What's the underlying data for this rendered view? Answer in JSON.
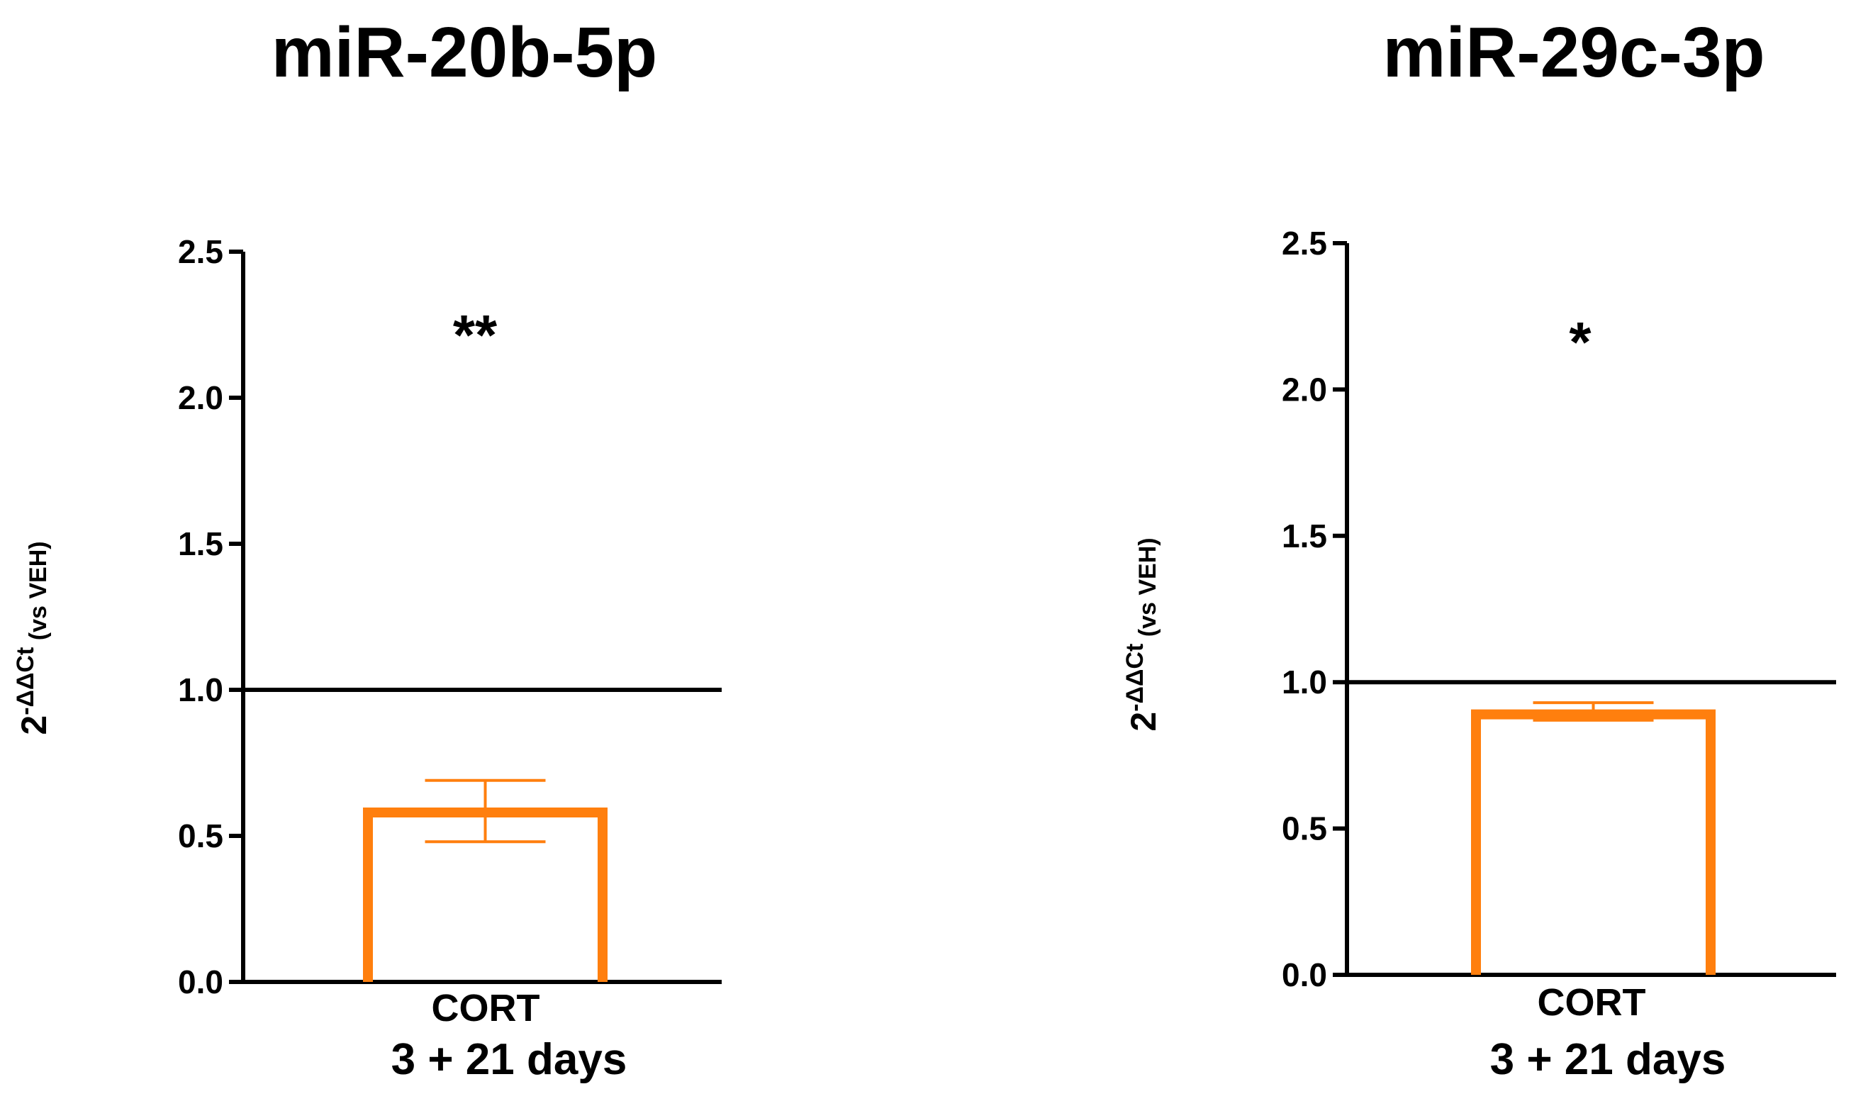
{
  "chart_data": [
    {
      "type": "bar",
      "title": "miR-20b-5p",
      "categories": [
        "CORT"
      ],
      "values": [
        0.58
      ],
      "error_upper": [
        0.69
      ],
      "error_lower": [
        0.48
      ],
      "reference_line": 1.0,
      "significance": "**",
      "ylabel_main": "2",
      "ylabel_sup": "-ΔΔCt",
      "ylabel_suffix": " (vs VEH)",
      "xlabel": "3 + 21 days",
      "ylim": [
        0,
        2.5
      ],
      "yticks": [
        "0.0",
        "0.5",
        "1.0",
        "1.5",
        "2.0",
        "2.5"
      ],
      "bar_color": "#ff7f0e"
    },
    {
      "type": "bar",
      "title": "miR-29c-3p",
      "categories": [
        "CORT"
      ],
      "values": [
        0.89
      ],
      "error_upper": [
        0.93
      ],
      "error_lower": [
        0.87
      ],
      "reference_line": 1.0,
      "significance": "*",
      "ylabel_main": "2",
      "ylabel_sup": "-ΔΔCt",
      "ylabel_suffix": " (vs VEH)",
      "xlabel": "3 + 21 days",
      "ylim": [
        0,
        2.5
      ],
      "yticks": [
        "0.0",
        "0.5",
        "1.0",
        "1.5",
        "2.0",
        "2.5"
      ],
      "bar_color": "#ff7f0e"
    }
  ]
}
